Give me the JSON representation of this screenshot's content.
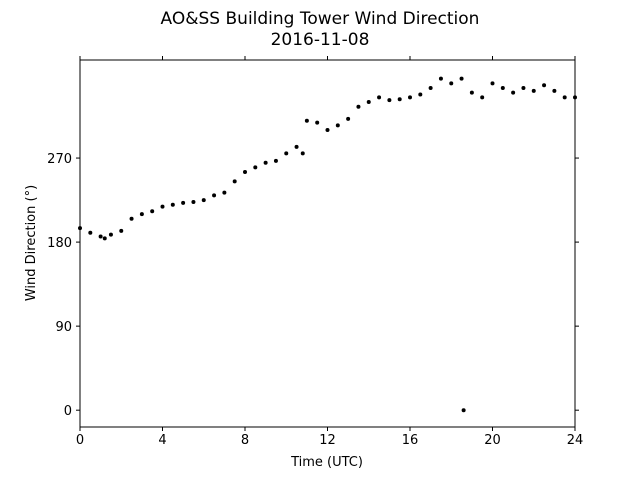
{
  "chart_data": {
    "type": "scatter",
    "title": "AO&SS Building Tower Wind Direction",
    "subtitle": "2016-11-08",
    "x_label": "Time (UTC)",
    "y_label": "Wind Direction (°)",
    "color": "#000000",
    "xlim": [
      0,
      24
    ],
    "xticks": [
      0,
      4,
      8,
      12,
      16,
      20,
      24
    ],
    "ylim": [
      -18,
      375
    ],
    "yticks": [
      0,
      90,
      180,
      270
    ],
    "x": [
      0,
      0.5,
      1,
      1.2,
      1.5,
      2,
      2.5,
      3,
      3.5,
      4,
      4.5,
      5,
      5.5,
      6,
      6.5,
      7,
      7.5,
      8,
      8.5,
      9,
      9.5,
      10,
      10.5,
      10.8,
      11,
      11.5,
      12,
      12.5,
      13,
      13.5,
      14,
      14.5,
      15,
      15.5,
      16,
      16.5,
      17,
      17.5,
      18,
      18.5,
      18.6,
      19,
      19.5,
      20,
      20.5,
      21,
      21.5,
      22,
      22.5,
      23,
      23.5,
      24
    ],
    "values": [
      195,
      190,
      186,
      184,
      188,
      192,
      205,
      210,
      213,
      218,
      220,
      222,
      223,
      225,
      230,
      233,
      245,
      255,
      260,
      265,
      267,
      275,
      282,
      275,
      310,
      308,
      300,
      305,
      312,
      325,
      330,
      335,
      332,
      333,
      335,
      338,
      345,
      355,
      350,
      355,
      0,
      340,
      335,
      350,
      345,
      340,
      345,
      342,
      348,
      342,
      335,
      335
    ]
  }
}
